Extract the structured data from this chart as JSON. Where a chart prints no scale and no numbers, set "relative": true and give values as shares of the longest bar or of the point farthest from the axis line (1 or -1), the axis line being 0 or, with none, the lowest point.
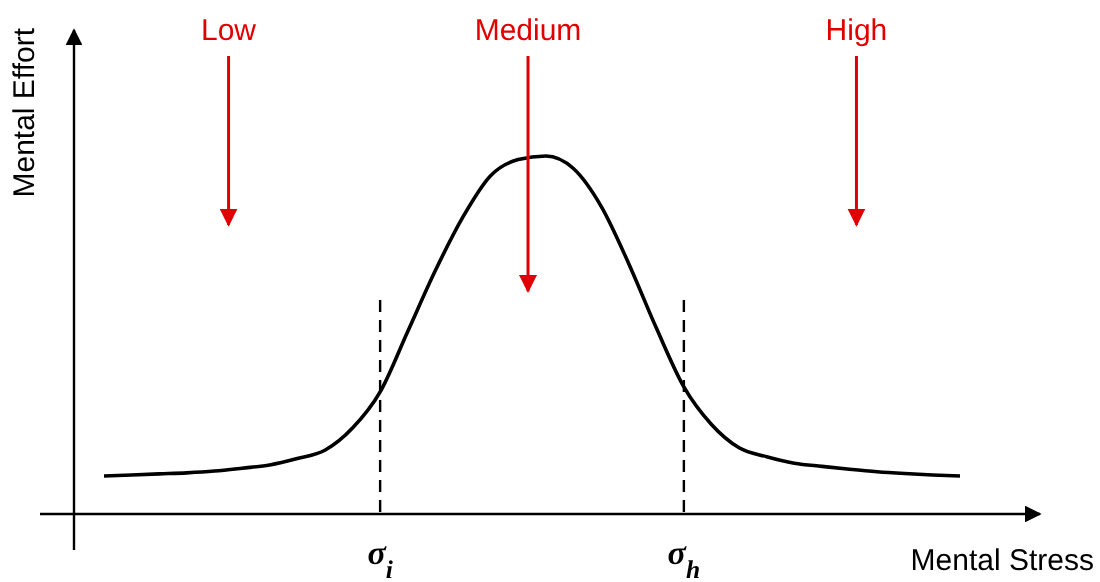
{
  "chart_data": {
    "type": "line",
    "relative": true,
    "xlabel": "Mental Stress",
    "ylabel": "Mental Effort",
    "categories": [
      null,
      null,
      null,
      null,
      null,
      null,
      null,
      null,
      null,
      null,
      "σ$_{i}$",
      null,
      null,
      null,
      null,
      null,
      null,
      null,
      null,
      null,
      null,
      "σ$_{h}$",
      null,
      null,
      null,
      null,
      null,
      null,
      null,
      null,
      null,
      null
    ],
    "series": [
      {
        "color": "#000000",
        "values": [
          0.106,
          0.109,
          0.112,
          0.115,
          0.12,
          0.128,
          0.137,
          0.155,
          0.178,
          0.24,
          0.341,
          0.51,
          0.68,
          0.83,
          0.945,
          0.99,
          1,
          0.965,
          0.86,
          0.7,
          0.52,
          0.355,
          0.25,
          0.185,
          0.16,
          0.142,
          0.133,
          0.125,
          0.118,
          0.113,
          0.109,
          0.106
        ]
      }
    ],
    "tick_labels": "x",
    "annotations": [
      "Low",
      "Medium",
      "High"
    ],
    "ref_lines": [
      {
        "axis": "x",
        "value": "σ$_{i}$",
        "line_style": "dashed"
      },
      {
        "axis": "x",
        "value": "σ$_{h}$",
        "line_style": "dashed"
      }
    ],
    "marker": "none",
    "line_style": "solid"
  }
}
